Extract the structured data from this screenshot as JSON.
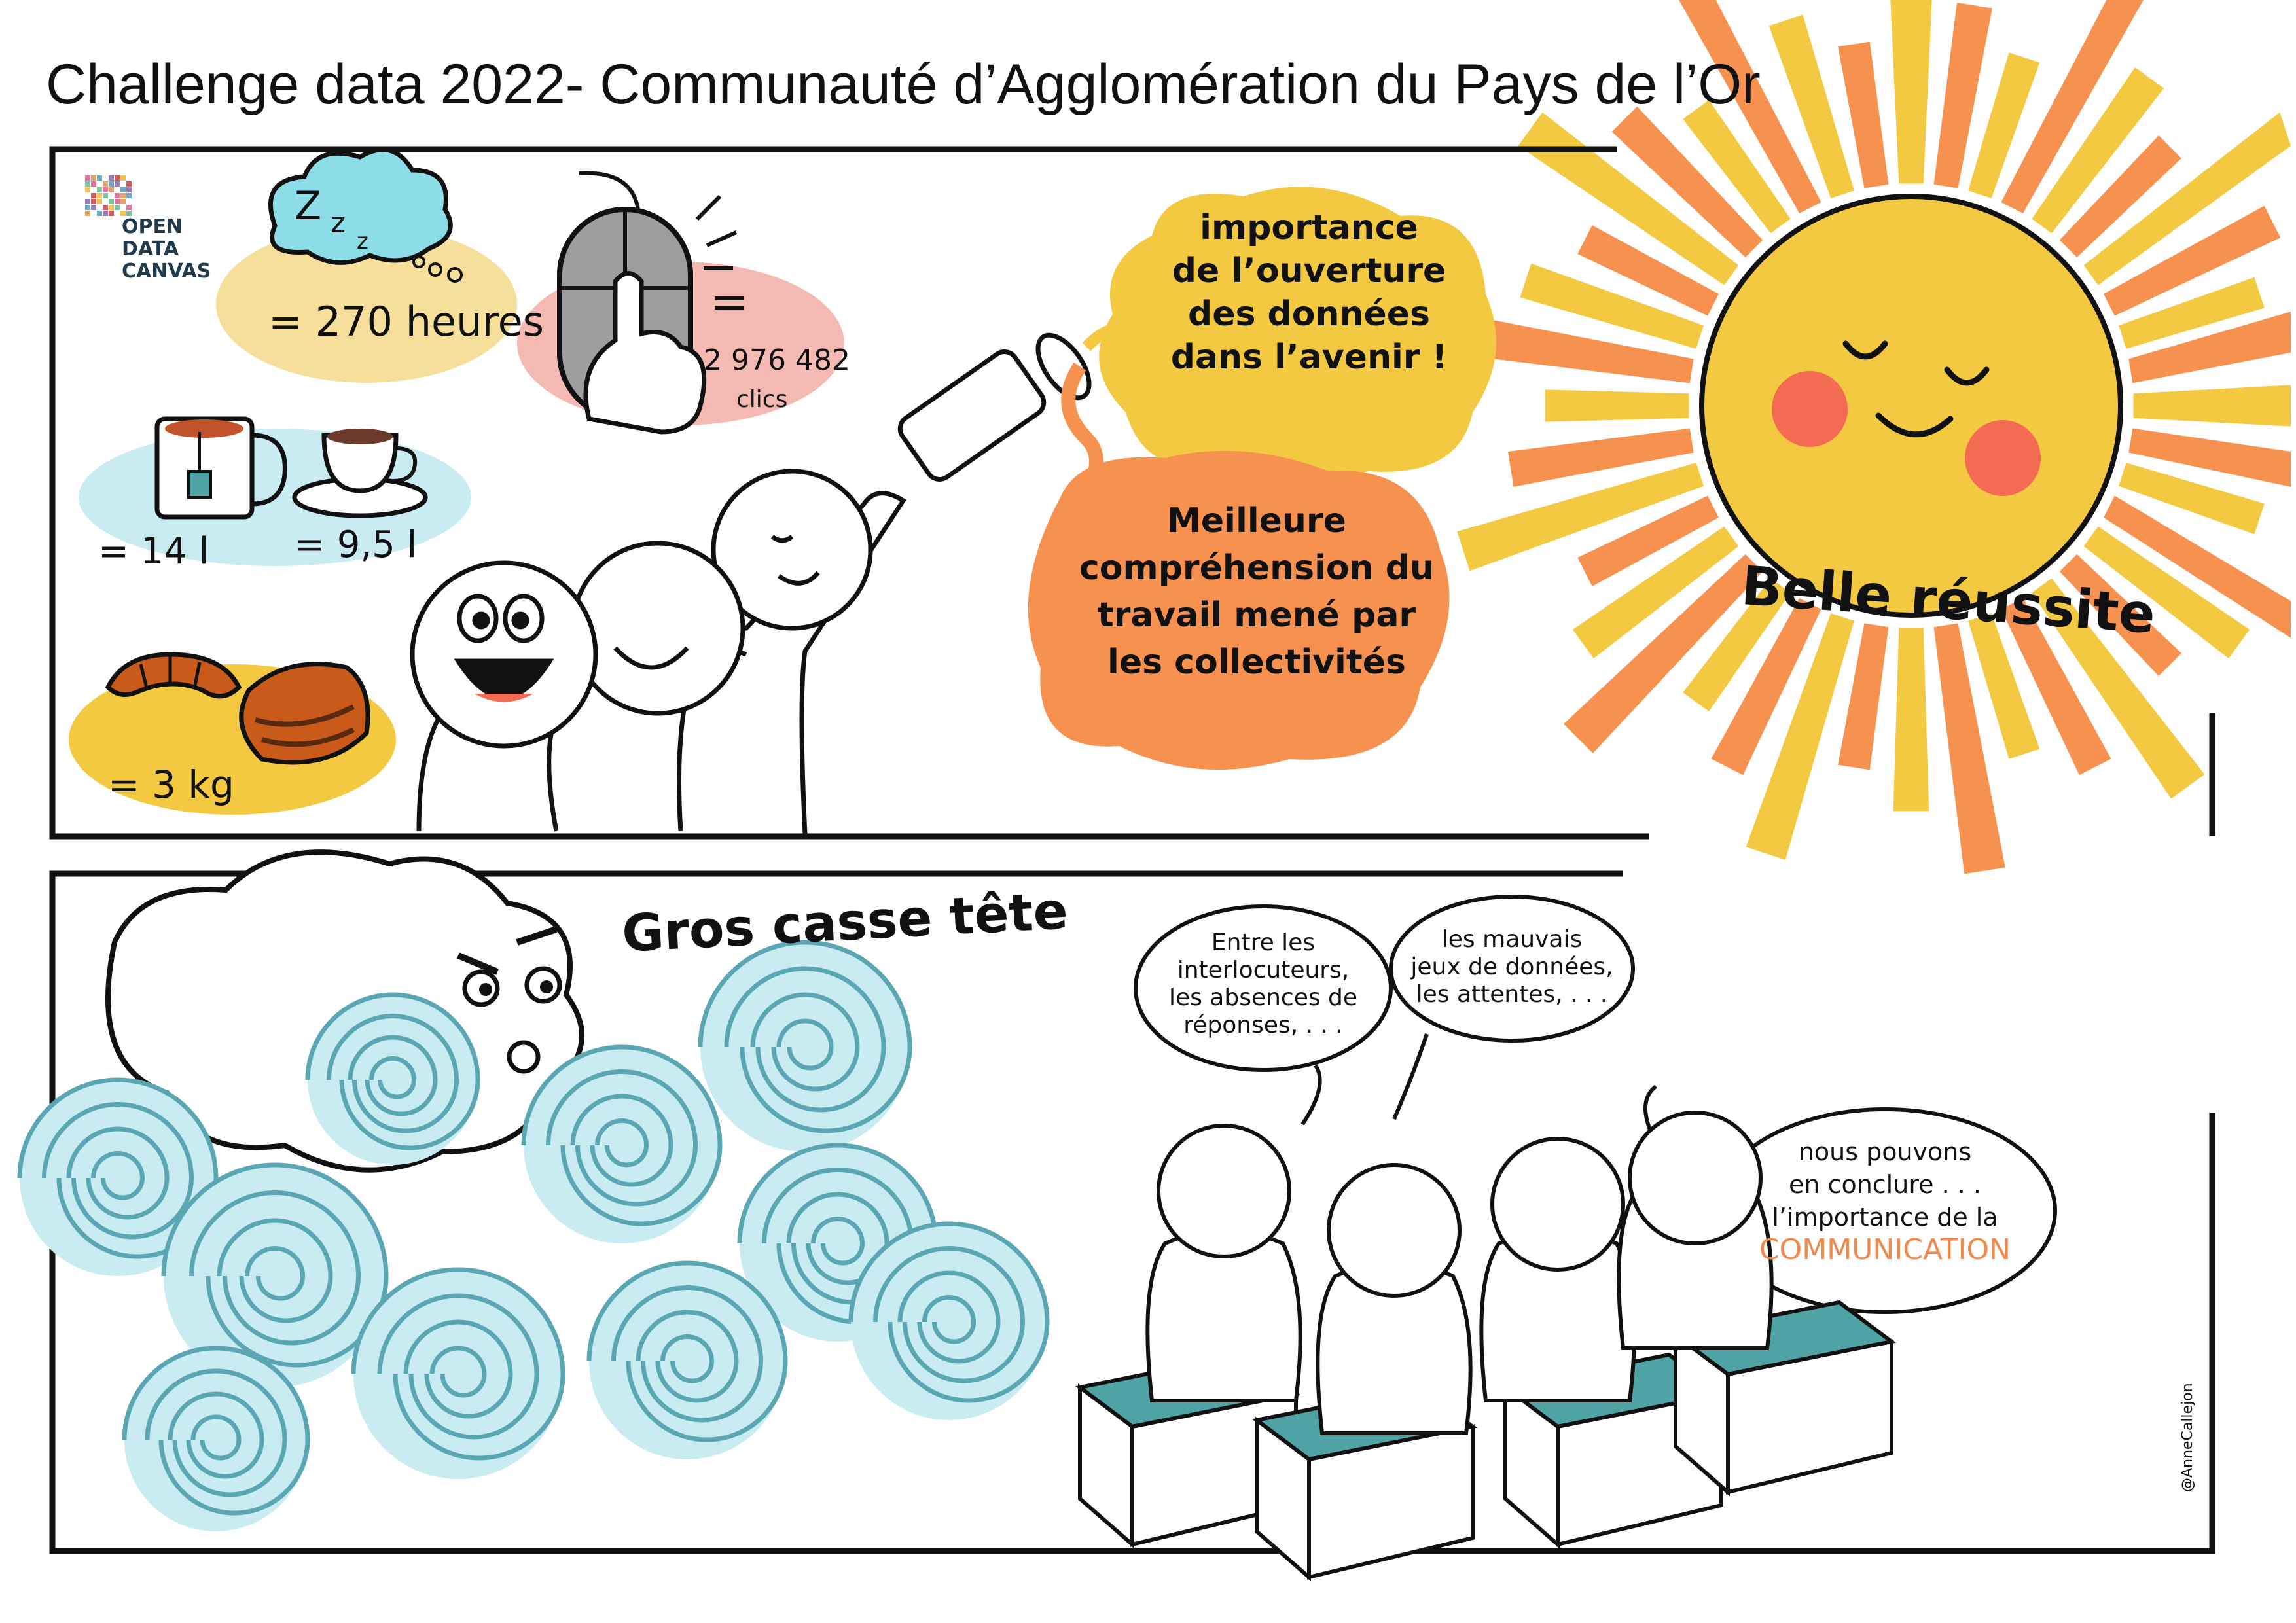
{
  "title": "Challenge data 2022- Communauté d’Agglomération du Pays de l’Or",
  "logo": {
    "lines": [
      "OPEN",
      "DATA",
      "CANVAS"
    ],
    "icon": "pixel-grid-logo"
  },
  "stats": {
    "sleep": {
      "value": "= 270 heures",
      "icon": "sleep-cloud-icon"
    },
    "mouse": {
      "eq": "=",
      "value": "2 976 482",
      "unit": "clics",
      "icon": "mouse-click-icon"
    },
    "drinks": {
      "tea": "= 14 l",
      "coffee": "= 9,5 l",
      "icons": [
        "tea-mug-icon",
        "coffee-cup-icon"
      ]
    },
    "pastry": {
      "value": "= 3 kg",
      "icons": [
        "croissant-icon",
        "pain-au-chocolat-icon"
      ]
    }
  },
  "bubbles": {
    "importance": [
      "importance",
      "de l’ouverture",
      "des données",
      "dans l’avenir !"
    ],
    "meilleure": [
      "Meilleure",
      "compréhension du",
      "travail mené par",
      "les collectivités"
    ]
  },
  "sun_label": "Belle réussite",
  "storm_label": "Gros casse tête",
  "speech": {
    "left": [
      "Entre les",
      "interlocuteurs,",
      "les absences de",
      "réponses, . . ."
    ],
    "middle": [
      "les mauvais",
      "jeux de données,",
      "les attentes, . . ."
    ],
    "right": [
      "nous pouvons",
      "en conclure . . .",
      "l’importance de la"
    ],
    "right_highlight": "COMMUNICATION"
  },
  "signature": "@AnneCallejon",
  "colors": {
    "yellow": "#f2c940",
    "orange": "#f7914f",
    "light_yellow": "#f6df9a",
    "pink": "#f4b9b2",
    "light_blue": "#c9ecf3",
    "teal": "#4fa3a5",
    "wave": "#5aa7b3",
    "cheek": "#f26b52"
  }
}
